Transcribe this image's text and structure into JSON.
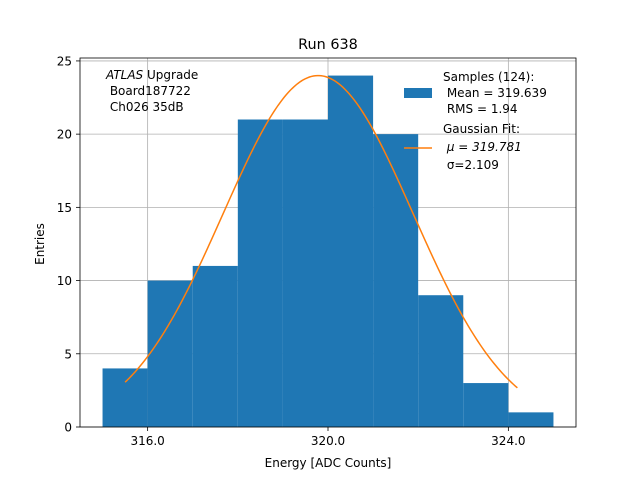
{
  "chart_data": {
    "type": "bar",
    "title": "Run 638",
    "xlabel": "Energy [ADC Counts]",
    "ylabel": "Entries",
    "xlim": [
      314.5,
      325.5
    ],
    "ylim": [
      0,
      25.2
    ],
    "grid": true,
    "x_ticks": [
      316.0,
      320.0,
      324.0
    ],
    "x_tick_labels": [
      "316.0",
      "320.0",
      "324.0"
    ],
    "y_ticks": [
      0,
      5,
      10,
      15,
      20,
      25
    ],
    "y_tick_labels": [
      "0",
      "5",
      "10",
      "15",
      "20",
      "25"
    ],
    "histogram": {
      "bin_edges": [
        315,
        316,
        317,
        318,
        319,
        320,
        321,
        322,
        323,
        324,
        325
      ],
      "counts": [
        4,
        10,
        11,
        21,
        21,
        24,
        20,
        9,
        3,
        1
      ],
      "color": "#1f77b4"
    },
    "fit": {
      "type": "gaussian",
      "amplitude": 24.0,
      "mu": 319.781,
      "sigma": 2.109,
      "x_range": [
        315.5,
        324.2
      ],
      "color": "#ff7f0e"
    },
    "annotation": {
      "lines": [
        "ATLAS Upgrade",
        "Board187722",
        "Ch026 35dB"
      ],
      "italic_word": "ATLAS"
    },
    "legend": {
      "placement": "top-right",
      "entries": [
        {
          "marker": "patch",
          "color": "#1f77b4",
          "lines": [
            "Samples (124):",
            "Mean = 319.639",
            "RMS = 1.94"
          ]
        },
        {
          "marker": "line",
          "color": "#ff7f0e",
          "lines": [
            "Gaussian Fit:",
            "μ = 319.781",
            "σ=2.109"
          ]
        }
      ]
    }
  }
}
